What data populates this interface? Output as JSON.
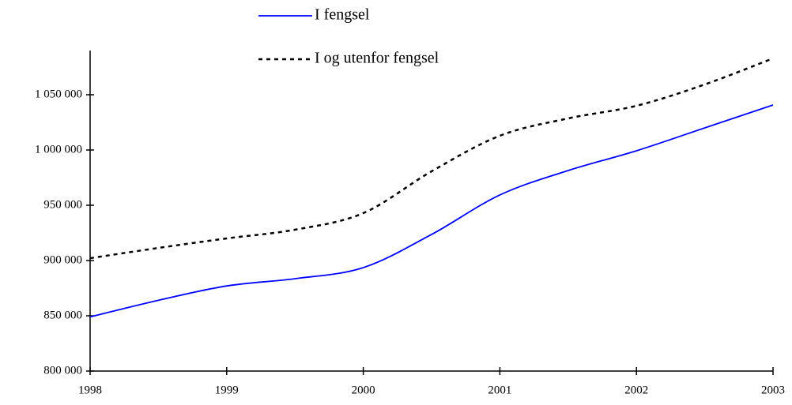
{
  "chart_data": {
    "type": "line",
    "x": [
      1998,
      1998.5,
      1999,
      1999.5,
      2000,
      2000.5,
      2001,
      2001.5,
      2002,
      2002.5,
      2003
    ],
    "series": [
      {
        "name": "I  fengsel",
        "color": "#0000ff",
        "dash": false,
        "values": [
          849000,
          864000,
          877000,
          883600,
          893600,
          923600,
          959300,
          981400,
          999300,
          1020000,
          1040700
        ]
      },
      {
        "name": "I og utenfor fengsel",
        "color": "#000000",
        "dash": true,
        "values": [
          902100,
          911400,
          920000,
          927900,
          942900,
          980700,
          1012900,
          1028600,
          1040000,
          1059300,
          1082900
        ]
      }
    ],
    "xlim": [
      1998,
      2003
    ],
    "xticks": [
      1998,
      1999,
      2000,
      2001,
      2002,
      2003
    ],
    "ylim": [
      800000,
      1090000
    ],
    "yticks": [
      {
        "value": 800000,
        "label": "800 000"
      },
      {
        "value": 850000,
        "label": "850 000"
      },
      {
        "value": 900000,
        "label": "900 000"
      },
      {
        "value": 950000,
        "label": "950 000"
      },
      {
        "value": 1000000,
        "label": "1 000 000"
      },
      {
        "value": 1050000,
        "label": "1 050 000"
      }
    ],
    "grid": false
  }
}
